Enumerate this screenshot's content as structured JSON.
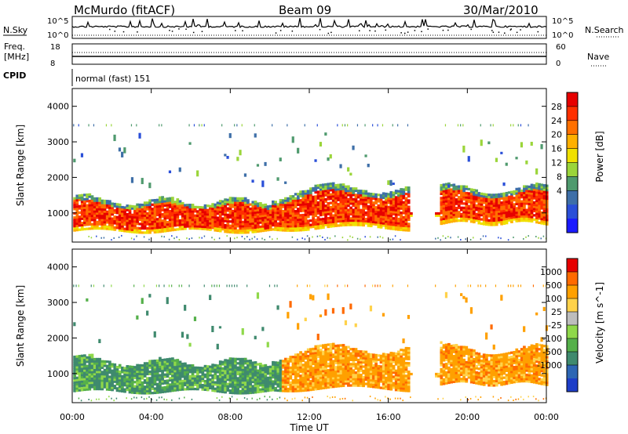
{
  "header": {
    "station": "McMurdo (fitACF)",
    "beam": "Beam 09",
    "date": "30/Mar/2010"
  },
  "top_panels": {
    "nsky_label": "N.Sky",
    "nsky_ticks": [
      "10^5",
      "10^0"
    ],
    "nsearch_label": "N.Search",
    "freq_label_1": "Freq.",
    "freq_label_2": "[MHz]",
    "freq_ticks": [
      "18",
      "8"
    ],
    "nave_label": "Nave",
    "nave_ticks": [
      "60",
      "0"
    ],
    "cpid_label": "CPID",
    "cpid_value": "normal (fast) 151"
  },
  "chart_data": [
    {
      "type": "heatmap",
      "name": "power",
      "ylabel": "Slant Range [km]",
      "xlabel": "",
      "xlim": [
        0,
        24
      ],
      "ylim": [
        180,
        4500
      ],
      "yticks": [
        1000,
        2000,
        3000,
        4000
      ],
      "colorbar": {
        "label": "Power [dB]",
        "ticks": [
          "4",
          "8",
          "12",
          "16",
          "20",
          "24",
          "28"
        ],
        "colors": [
          "#1a1aff",
          "#2a4fd8",
          "#3e6fa8",
          "#4f9a6e",
          "#9bd53a",
          "#f0e000",
          "#ffb000",
          "#ff7000",
          "#ff3000",
          "#e60000"
        ]
      }
    },
    {
      "type": "heatmap",
      "name": "velocity",
      "ylabel": "Slant Range [km]",
      "xlabel": "Time UT",
      "xlim": [
        0,
        24
      ],
      "ylim": [
        180,
        4500
      ],
      "yticks": [
        1000,
        2000,
        3000,
        4000
      ],
      "xticks": [
        "00:00",
        "04:00",
        "08:00",
        "12:00",
        "16:00",
        "20:00",
        "00:00"
      ],
      "colorbar": {
        "label": "Velocity [m s^-1]",
        "ticks": [
          "1000",
          "500",
          "100",
          "25",
          "-25",
          "-100",
          "-500",
          "-1000"
        ],
        "colors": [
          "#1e3ec8",
          "#2d66b4",
          "#3f8a6e",
          "#55b04a",
          "#8fd84a",
          "#bdbdbd",
          "#ffd24a",
          "#ffa000",
          "#ff6a00",
          "#e60000"
        ]
      }
    }
  ]
}
